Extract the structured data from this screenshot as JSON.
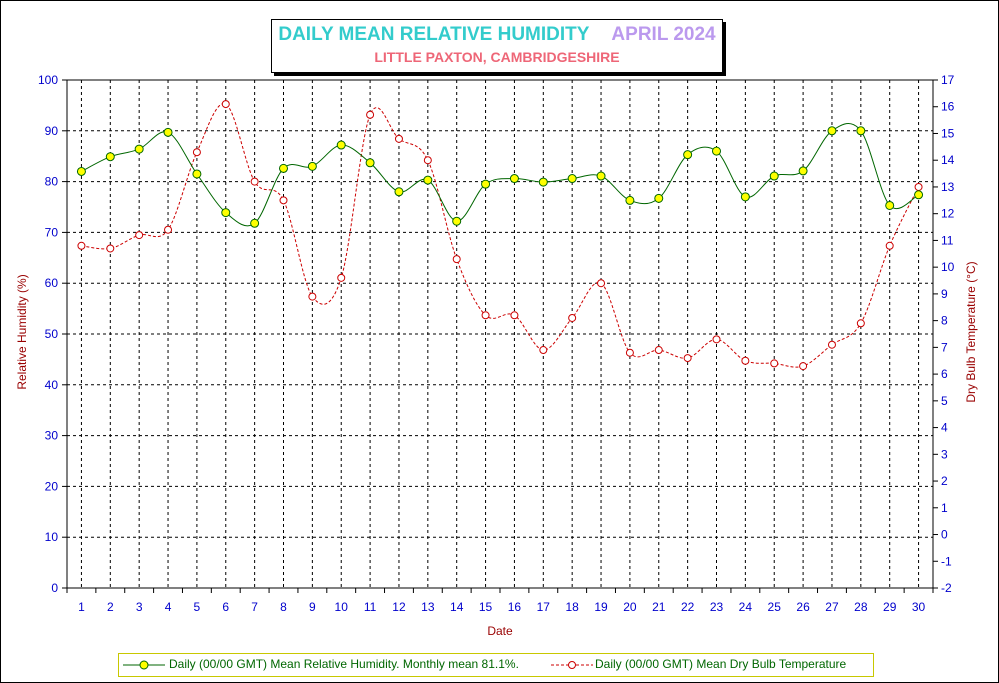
{
  "title": "DAILY MEAN RELATIVE HUMIDITY",
  "month": "APRIL 2024",
  "subtitle": "LITTLE PAXTON, CAMBRIDGESHIRE",
  "colors": {
    "title": "#33cccc",
    "month": "#bb99ee",
    "subtitle": "#ee6677",
    "humidity": "#006600",
    "humidity_marker": "#ffff00",
    "temperature": "#cc0000",
    "axis_text": "#0000cc",
    "axis_title": "#990000"
  },
  "chart_data": {
    "type": "line",
    "xlabel": "Date",
    "ylabel_left": "Relative Humidity (%)",
    "ylabel_right": "Dry Bulb Temperature (°C)",
    "ylim_left": [
      0,
      100
    ],
    "ylim_right": [
      -2,
      17
    ],
    "y_ticks_left": [
      0,
      10,
      20,
      30,
      40,
      50,
      60,
      70,
      80,
      90,
      100
    ],
    "y_ticks_right": [
      -2,
      -1,
      0,
      1,
      2,
      3,
      4,
      5,
      6,
      7,
      8,
      9,
      10,
      11,
      12,
      13,
      14,
      15,
      16,
      17
    ],
    "x": [
      1,
      2,
      3,
      4,
      5,
      6,
      7,
      8,
      9,
      10,
      11,
      12,
      13,
      14,
      15,
      16,
      17,
      18,
      19,
      20,
      21,
      22,
      23,
      24,
      25,
      26,
      27,
      28,
      29,
      30
    ],
    "grid": true,
    "legend_position": "bottom",
    "series": [
      {
        "name": "Daily (00/00 GMT) Mean Relative Humidity. Monthly mean 81.1%.",
        "axis": "left",
        "style": "solid-smooth",
        "values": [
          82.0,
          84.9,
          86.4,
          89.7,
          81.5,
          73.9,
          71.8,
          82.6,
          83.0,
          87.2,
          83.7,
          78.0,
          80.3,
          72.2,
          79.5,
          80.6,
          79.9,
          80.6,
          81.1,
          76.3,
          76.7,
          85.3,
          86.0,
          77.0,
          81.1,
          82.1,
          90.0,
          90.0,
          75.3,
          77.4
        ]
      },
      {
        "name": "Daily (00/00 GMT) Mean Dry Bulb Temperature",
        "axis": "right",
        "style": "dashed-smooth",
        "values": [
          10.8,
          10.7,
          11.2,
          11.4,
          14.3,
          16.1,
          13.2,
          12.5,
          8.9,
          9.6,
          15.7,
          14.8,
          14.0,
          10.3,
          8.2,
          8.2,
          6.9,
          8.1,
          9.4,
          6.8,
          6.9,
          6.6,
          7.3,
          6.5,
          6.4,
          6.3,
          7.1,
          7.9,
          10.8,
          13.0
        ]
      }
    ]
  }
}
